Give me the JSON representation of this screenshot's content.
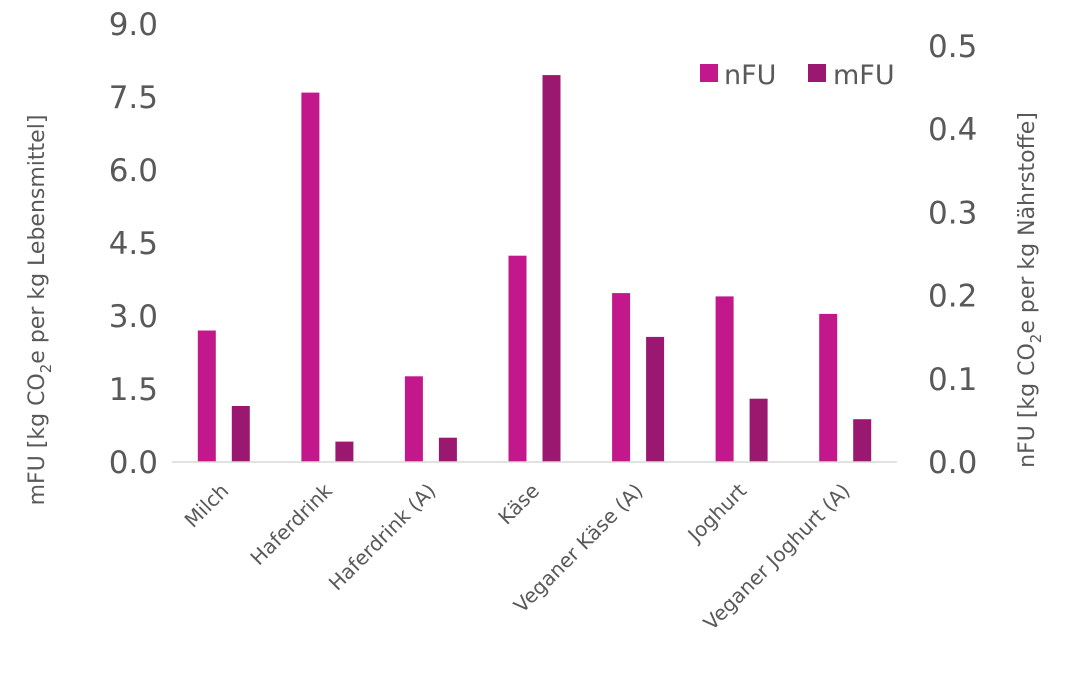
{
  "chart_data": {
    "type": "bar",
    "categories": [
      "Milch",
      "Haferdrink",
      "Haferdrink (A)",
      "Käse",
      "Veganer Käse (A)",
      "Joghurt",
      "Veganer Joghurt (A)"
    ],
    "series": [
      {
        "name": "nFU",
        "axis": "right",
        "color": "#c2188b",
        "values": [
          0.158,
          0.444,
          0.103,
          0.248,
          0.203,
          0.199,
          0.178
        ]
      },
      {
        "name": "mFU",
        "axis": "left",
        "color": "#9b1871",
        "values": [
          1.15,
          0.42,
          0.5,
          7.95,
          2.57,
          1.3,
          0.88
        ]
      }
    ],
    "y_left": {
      "label_prefix": "mFU [kg CO",
      "label_sub": "2",
      "label_suffix": "e per kg Lebensmittel]",
      "ylim": [
        0,
        9
      ],
      "ticks": [
        "0.0",
        "1.5",
        "3.0",
        "4.5",
        "6.0",
        "7.5",
        "9.0"
      ]
    },
    "y_right": {
      "label_prefix": "nFU [kg CO",
      "label_sub": "2",
      "label_suffix": "e per kg Nährstoffe]",
      "ylim": [
        0,
        0.5
      ],
      "ticks": [
        "0.0",
        "0.1",
        "0.2",
        "0.3",
        "0.4",
        "0.5"
      ]
    },
    "legend": {
      "position": "top-right",
      "items": [
        "nFU",
        "mFU"
      ]
    },
    "grid": false
  }
}
